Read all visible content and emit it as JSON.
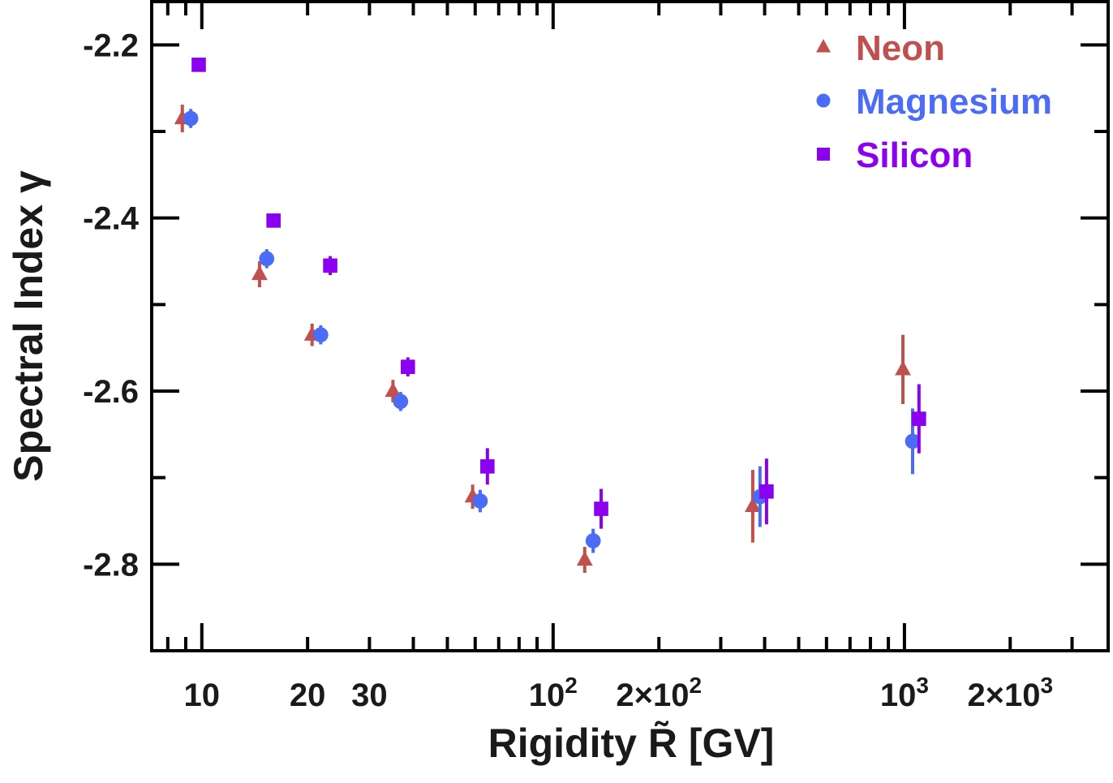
{
  "chart_data": {
    "type": "scatter",
    "title": "",
    "xlabel": "Rigidity R̃ [GV]",
    "ylabel": "Spectral Index γ",
    "xscale": "log",
    "xlim": [
      7.2,
      3800
    ],
    "ylim": [
      -2.9,
      -2.15
    ],
    "grid": false,
    "legend_position": "top-right",
    "x_tick_labels": [
      {
        "value": 10,
        "base": "10",
        "exp": ""
      },
      {
        "value": 20,
        "base": "20",
        "exp": ""
      },
      {
        "value": 30,
        "base": "30",
        "exp": ""
      },
      {
        "value": 100,
        "base": "10",
        "exp": "2"
      },
      {
        "value": 200,
        "base": "2×10",
        "exp": "2"
      },
      {
        "value": 1000,
        "base": "10",
        "exp": "3"
      },
      {
        "value": 2000,
        "base": "2×10",
        "exp": "3"
      }
    ],
    "y_tick_labels": [
      {
        "value": -2.2,
        "label": "-2.2"
      },
      {
        "value": -2.4,
        "label": "-2.4"
      },
      {
        "value": -2.6,
        "label": "-2.6"
      },
      {
        "value": -2.8,
        "label": "-2.8"
      }
    ],
    "series": [
      {
        "name": "Neon",
        "color": "#c0504d",
        "marker": "triangle",
        "points": [
          {
            "x": 8.8,
            "y": -2.285,
            "err": 0.016
          },
          {
            "x": 14.6,
            "y": -2.465,
            "err": 0.015
          },
          {
            "x": 20.6,
            "y": -2.535,
            "err": 0.013
          },
          {
            "x": 35.0,
            "y": -2.6,
            "err": 0.013
          },
          {
            "x": 59.0,
            "y": -2.722,
            "err": 0.014
          },
          {
            "x": 123.0,
            "y": -2.795,
            "err": 0.015
          },
          {
            "x": 370.0,
            "y": -2.733,
            "err": 0.042
          },
          {
            "x": 990.0,
            "y": -2.575,
            "err": 0.04
          }
        ]
      },
      {
        "name": "Magnesium",
        "color": "#4a6cf7",
        "marker": "circle",
        "points": [
          {
            "x": 9.3,
            "y": -2.285,
            "err": 0.011
          },
          {
            "x": 15.3,
            "y": -2.447,
            "err": 0.011
          },
          {
            "x": 21.8,
            "y": -2.535,
            "err": 0.011
          },
          {
            "x": 36.8,
            "y": -2.612,
            "err": 0.011
          },
          {
            "x": 62.0,
            "y": -2.727,
            "err": 0.013
          },
          {
            "x": 130.0,
            "y": -2.773,
            "err": 0.014
          },
          {
            "x": 388.0,
            "y": -2.722,
            "err": 0.035
          },
          {
            "x": 1055.0,
            "y": -2.658,
            "err": 0.038
          }
        ]
      },
      {
        "name": "Silicon",
        "color": "#8b00ee",
        "marker": "square",
        "points": [
          {
            "x": 9.8,
            "y": -2.223,
            "err": 0.007
          },
          {
            "x": 16.0,
            "y": -2.403,
            "err": 0.008
          },
          {
            "x": 23.2,
            "y": -2.455,
            "err": 0.011
          },
          {
            "x": 38.6,
            "y": -2.572,
            "err": 0.011
          },
          {
            "x": 65.0,
            "y": -2.687,
            "err": 0.021
          },
          {
            "x": 137.0,
            "y": -2.736,
            "err": 0.023
          },
          {
            "x": 405.0,
            "y": -2.716,
            "err": 0.038
          },
          {
            "x": 1100.0,
            "y": -2.632,
            "err": 0.04
          }
        ]
      }
    ]
  }
}
